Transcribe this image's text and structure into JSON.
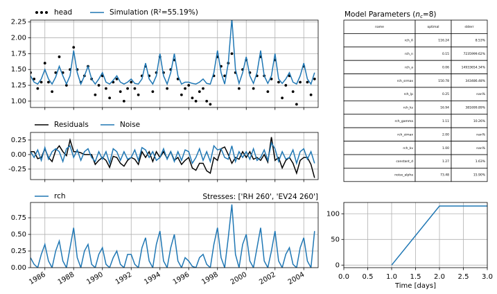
{
  "chart_data": [
    {
      "type": "line",
      "grid": true,
      "x": [
        1985,
        1985.25,
        1985.5,
        1985.75,
        1986,
        1986.25,
        1986.5,
        1986.75,
        1987,
        1987.25,
        1987.5,
        1987.75,
        1988,
        1988.25,
        1988.5,
        1988.75,
        1989,
        1989.25,
        1989.5,
        1989.75,
        1990,
        1990.25,
        1990.5,
        1990.75,
        1991,
        1991.25,
        1991.5,
        1991.75,
        1992,
        1992.25,
        1992.5,
        1992.75,
        1993,
        1993.25,
        1993.5,
        1993.75,
        1994,
        1994.25,
        1994.5,
        1994.75,
        1995,
        1995.25,
        1995.5,
        1995.75,
        1996,
        1996.25,
        1996.5,
        1996.75,
        1997,
        1997.25,
        1997.5,
        1997.75,
        1998,
        1998.25,
        1998.5,
        1998.75,
        1999,
        1999.25,
        1999.5,
        1999.75,
        2000,
        2000.25,
        2000.5,
        2000.75,
        2001,
        2001.25,
        2001.5,
        2001.75,
        2002,
        2002.25,
        2002.5,
        2002.75,
        2003,
        2003.25,
        2003.5,
        2003.75,
        2004,
        2004.25,
        2004.5,
        2004.75
      ],
      "xlim": [
        1985,
        2005
      ],
      "xticks": [
        1986,
        1988,
        1990,
        1992,
        1994,
        1996,
        1998,
        2000,
        2002,
        2004
      ],
      "ylim": [
        0.9,
        2.28
      ],
      "yticks": [
        {
          "value": 1,
          "label": "1.00"
        },
        1.25,
        {
          "value": 1.5,
          "label": "1.50"
        },
        1.75,
        {
          "value": 2,
          "label": "2.00"
        },
        2.25
      ],
      "series": [
        {
          "name": "head",
          "type": "scatter",
          "color": "#000000",
          "values": [
            1.45,
            1.35,
            1.2,
            1.3,
            1.6,
            1.3,
            1.15,
            1.45,
            1.7,
            1.45,
            1.25,
            1.5,
            1.85,
            1.5,
            1.3,
            1.4,
            1.55,
            1.35,
            1.1,
            1.25,
            1.4,
            1.2,
            1.05,
            1.3,
            1.35,
            1.15,
            1.0,
            1.2,
            1.3,
            1.2,
            1.1,
            1.4,
            1.55,
            1.4,
            1.15,
            1.45,
            1.7,
            1.45,
            1.2,
            1.5,
            1.65,
            1.35,
            1.1,
            1.2,
            1.25,
            1.05,
            1.0,
            1.15,
            1.2,
            1.0,
            0.95,
            1.4,
            1.7,
            1.55,
            1.4,
            1.6,
            1.75,
            1.45,
            1.2,
            1.5,
            1.65,
            1.45,
            1.2,
            1.4,
            1.7,
            1.4,
            1.15,
            1.35,
            1.65,
            1.3,
            1.05,
            1.25,
            1.4,
            1.15,
            0.95,
            1.3,
            1.55,
            1.3,
            1.1,
            1.35
          ]
        },
        {
          "name": "Simulation (R²=55.19%)",
          "type": "line",
          "color": "#1f77b4",
          "values": [
            1.4,
            1.3,
            1.27,
            1.35,
            1.5,
            1.35,
            1.27,
            1.38,
            1.55,
            1.4,
            1.27,
            1.4,
            1.8,
            1.45,
            1.27,
            1.4,
            1.55,
            1.35,
            1.27,
            1.35,
            1.45,
            1.3,
            1.27,
            1.33,
            1.4,
            1.3,
            1.27,
            1.3,
            1.35,
            1.28,
            1.27,
            1.35,
            1.6,
            1.35,
            1.27,
            1.4,
            1.75,
            1.4,
            1.27,
            1.45,
            1.75,
            1.4,
            1.27,
            1.3,
            1.3,
            1.28,
            1.27,
            1.3,
            1.35,
            1.28,
            1.27,
            1.45,
            1.8,
            1.45,
            1.27,
            1.6,
            2.3,
            1.5,
            1.28,
            1.45,
            1.7,
            1.4,
            1.28,
            1.45,
            1.8,
            1.4,
            1.28,
            1.4,
            1.75,
            1.35,
            1.28,
            1.35,
            1.45,
            1.3,
            1.27,
            1.4,
            1.6,
            1.35,
            1.27,
            1.45
          ]
        }
      ]
    },
    {
      "type": "line",
      "grid": true,
      "x": [
        1985,
        1985.25,
        1985.5,
        1985.75,
        1986,
        1986.25,
        1986.5,
        1986.75,
        1987,
        1987.25,
        1987.5,
        1987.75,
        1988,
        1988.25,
        1988.5,
        1988.75,
        1989,
        1989.25,
        1989.5,
        1989.75,
        1990,
        1990.25,
        1990.5,
        1990.75,
        1991,
        1991.25,
        1991.5,
        1991.75,
        1992,
        1992.25,
        1992.5,
        1992.75,
        1993,
        1993.25,
        1993.5,
        1993.75,
        1994,
        1994.25,
        1994.5,
        1994.75,
        1995,
        1995.25,
        1995.5,
        1995.75,
        1996,
        1996.25,
        1996.5,
        1996.75,
        1997,
        1997.25,
        1997.5,
        1997.75,
        1998,
        1998.25,
        1998.5,
        1998.75,
        1999,
        1999.25,
        1999.5,
        1999.75,
        2000,
        2000.25,
        2000.5,
        2000.75,
        2001,
        2001.25,
        2001.5,
        2001.75,
        2002,
        2002.25,
        2002.5,
        2002.75,
        2003,
        2003.25,
        2003.5,
        2003.75,
        2004,
        2004.25,
        2004.5,
        2004.75
      ],
      "xlim": [
        1985,
        2005
      ],
      "xticks": [
        1986,
        1988,
        1990,
        1992,
        1994,
        1996,
        1998,
        2000,
        2002,
        2004
      ],
      "ylim": [
        -0.43,
        0.38
      ],
      "yticks": [
        -0.25,
        {
          "value": 0,
          "label": "0.00"
        },
        0.25
      ],
      "series": [
        {
          "name": "Residuals",
          "type": "line",
          "color": "#000000",
          "values": [
            0.05,
            0.05,
            -0.07,
            -0.05,
            0.1,
            -0.05,
            -0.12,
            0.07,
            0.15,
            0.05,
            -0.02,
            0.25,
            0.05,
            0.05,
            0.03,
            0,
            0,
            0,
            -0.17,
            -0.1,
            -0.05,
            -0.1,
            -0.22,
            -0.03,
            -0.05,
            -0.15,
            -0.2,
            -0.1,
            -0.05,
            -0.08,
            -0.17,
            0.05,
            -0.05,
            0.05,
            -0.12,
            0.05,
            -0.05,
            0.05,
            -0.07,
            0.05,
            -0.1,
            -0.05,
            -0.17,
            -0.1,
            -0.05,
            -0.23,
            -0.27,
            -0.15,
            -0.15,
            -0.28,
            -0.32,
            -0.05,
            -0.1,
            0.1,
            0.13,
            0,
            -0.15,
            -0.05,
            -0.08,
            0.05,
            -0.05,
            0.05,
            -0.08,
            -0.05,
            -0.1,
            0,
            -0.13,
            0.3,
            -0.1,
            -0.05,
            -0.23,
            -0.1,
            -0.05,
            -0.15,
            -0.32,
            -0.1,
            -0.05,
            -0.05,
            -0.17,
            -0.4
          ]
        },
        {
          "name": "Noise",
          "type": "line",
          "color": "#1f77b4",
          "values": [
            0.05,
            -0.05,
            0.08,
            -0.1,
            0.12,
            -0.08,
            0.05,
            0.1,
            0.05,
            -0.12,
            0.1,
            0.15,
            -0.05,
            0.08,
            -0.1,
            0.05,
            0.1,
            -0.05,
            -0.12,
            0.05,
            -0.08,
            0.05,
            -0.15,
            0.1,
            0.05,
            -0.1,
            0.05,
            -0.08,
            -0.05,
            0.08,
            -0.1,
            0.12,
            0.08,
            -0.05,
            0.05,
            -0.1,
            -0.05,
            0.1,
            -0.08,
            0.05,
            -0.12,
            0.05,
            -0.1,
            0.08,
            0.05,
            -0.15,
            -0.05,
            0.1,
            -0.1,
            0.05,
            -0.12,
            0.15,
            0.08,
            0.1,
            -0.05,
            -0.08,
            0.15,
            -0.12,
            0.05,
            -0.05,
            0.05,
            -0.08,
            0.1,
            -0.1,
            -0.05,
            0.08,
            -0.1,
            0.2,
            0.1,
            -0.12,
            0.05,
            -0.08,
            -0.05,
            0.08,
            -0.15,
            0.05,
            0.1,
            -0.08,
            0.05,
            -0.15
          ]
        }
      ]
    },
    {
      "type": "line",
      "grid": true,
      "title": "Stresses: ['RH 260', 'EV24 260']",
      "x": [
        1985,
        1985.25,
        1985.5,
        1985.75,
        1986,
        1986.25,
        1986.5,
        1986.75,
        1987,
        1987.25,
        1987.5,
        1987.75,
        1988,
        1988.25,
        1988.5,
        1988.75,
        1989,
        1989.25,
        1989.5,
        1989.75,
        1990,
        1990.25,
        1990.5,
        1990.75,
        1991,
        1991.25,
        1991.5,
        1991.75,
        1992,
        1992.25,
        1992.5,
        1992.75,
        1993,
        1993.25,
        1993.5,
        1993.75,
        1994,
        1994.25,
        1994.5,
        1994.75,
        1995,
        1995.25,
        1995.5,
        1995.75,
        1996,
        1996.25,
        1996.5,
        1996.75,
        1997,
        1997.25,
        1997.5,
        1997.75,
        1998,
        1998.25,
        1998.5,
        1998.75,
        1999,
        1999.25,
        1999.5,
        1999.75,
        2000,
        2000.25,
        2000.5,
        2000.75,
        2001,
        2001.25,
        2001.5,
        2001.75,
        2002,
        2002.25,
        2002.5,
        2002.75,
        2003,
        2003.25,
        2003.5,
        2003.75,
        2004,
        2004.25,
        2004.5,
        2004.75
      ],
      "xlim": [
        1985,
        2005
      ],
      "xticks": [
        1986,
        1988,
        1990,
        1992,
        1994,
        1996,
        1998,
        2000,
        2002,
        2004
      ],
      "ylim": [
        0,
        0.98
      ],
      "yticks": [
        {
          "value": 0,
          "label": "0.00"
        },
        0.25,
        {
          "value": 0.5,
          "label": "0.50"
        },
        0.75
      ],
      "series": [
        {
          "name": "rch",
          "type": "line",
          "color": "#1f77b4",
          "values": [
            0.15,
            0.05,
            0,
            0.2,
            0.35,
            0.1,
            0,
            0.25,
            0.4,
            0.1,
            0,
            0.3,
            0.6,
            0.15,
            0,
            0.25,
            0.35,
            0.05,
            0,
            0.2,
            0.3,
            0.05,
            0,
            0.15,
            0.25,
            0.05,
            0,
            0.2,
            0.2,
            0.05,
            0,
            0.3,
            0.45,
            0.1,
            0,
            0.35,
            0.55,
            0.1,
            0,
            0.3,
            0.5,
            0.1,
            0,
            0.15,
            0.1,
            0.02,
            0,
            0.15,
            0.2,
            0.05,
            0,
            0.35,
            0.6,
            0.15,
            0,
            0.45,
            0.95,
            0.2,
            0,
            0.35,
            0.5,
            0.1,
            0,
            0.3,
            0.6,
            0.1,
            0,
            0.25,
            0.55,
            0.1,
            0,
            0.2,
            0.3,
            0.05,
            0,
            0.3,
            0.45,
            0.1,
            0,
            0.55
          ]
        }
      ]
    },
    {
      "type": "line",
      "grid": true,
      "xlabel": "Time [days]",
      "x": [
        1,
        2,
        3
      ],
      "values": [
        0,
        115,
        115
      ],
      "color": "#1f77b4",
      "xlim": [
        0,
        3
      ],
      "xticks": [
        {
          "value": 0,
          "label": "0.0"
        },
        0.5,
        {
          "value": 1,
          "label": "1.0"
        },
        1.5,
        {
          "value": 2,
          "label": "2.0"
        },
        2.5,
        {
          "value": 3,
          "label": "3.0"
        }
      ],
      "ylim": [
        -5,
        122
      ],
      "yticks": [
        0,
        50,
        100
      ]
    }
  ],
  "table": {
    "title": [
      "Model Parameters (",
      "n",
      "c",
      "=8)"
    ],
    "header": [
      "name",
      "optimal",
      "stderr"
    ],
    "rows": [
      [
        "rch_A",
        "116.24",
        "8.53%"
      ],
      [
        "rch_n",
        "0.15",
        "7235999.62%"
      ],
      [
        "rch_a",
        "0.06",
        "14933654.34%"
      ],
      [
        "rch_srmax",
        "150.78",
        "343486.48%"
      ],
      [
        "rch_lp",
        "0.25",
        "nan%"
      ],
      [
        "rch_ks",
        "16.94",
        "381699.89%"
      ],
      [
        "rch_gamma",
        "1.11",
        "10.26%"
      ],
      [
        "rch_simax",
        "2.00",
        "nan%"
      ],
      [
        "rch_kv",
        "1.00",
        "nan%"
      ],
      [
        "constant_d",
        "1.27",
        "1.63%"
      ],
      [
        "noise_alpha",
        "73.48",
        "15.90%"
      ]
    ]
  }
}
